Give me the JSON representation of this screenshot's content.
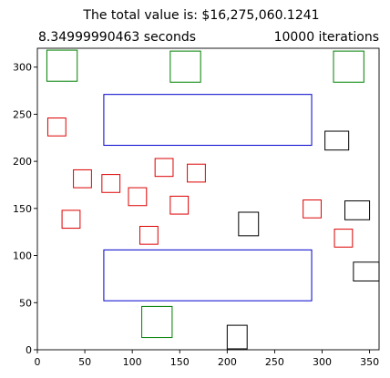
{
  "chart_data": {
    "type": "scatter",
    "title": "The total value is: $16,275,060.1241",
    "subtitle_left": "8.34999990463 seconds",
    "subtitle_right": "10000 iterations",
    "xlabel": "",
    "ylabel": "",
    "xlim": [
      0,
      360
    ],
    "ylim": [
      0,
      320
    ],
    "x_ticks": [
      0,
      50,
      100,
      150,
      200,
      250,
      300,
      350
    ],
    "y_ticks": [
      0,
      50,
      100,
      150,
      200,
      250,
      300
    ],
    "grid": false,
    "colors": {
      "green": "#008000",
      "blue": "#0000cc",
      "red": "#dd0000",
      "black": "#000000"
    },
    "rectangles": [
      {
        "x0": 10,
        "y0": 285,
        "x1": 42,
        "y1": 318,
        "color": "green"
      },
      {
        "x0": 140,
        "y0": 284,
        "x1": 172,
        "y1": 317,
        "color": "green"
      },
      {
        "x0": 312,
        "y0": 284,
        "x1": 344,
        "y1": 317,
        "color": "green"
      },
      {
        "x0": 110,
        "y0": 13,
        "x1": 142,
        "y1": 46,
        "color": "green"
      },
      {
        "x0": 70,
        "y0": 217,
        "x1": 289,
        "y1": 271,
        "color": "blue"
      },
      {
        "x0": 70,
        "y0": 52,
        "x1": 289,
        "y1": 106,
        "color": "blue"
      },
      {
        "x0": 11,
        "y0": 227,
        "x1": 30,
        "y1": 246,
        "color": "red"
      },
      {
        "x0": 38,
        "y0": 172,
        "x1": 57,
        "y1": 191,
        "color": "red"
      },
      {
        "x0": 68,
        "y0": 167,
        "x1": 87,
        "y1": 186,
        "color": "red"
      },
      {
        "x0": 124,
        "y0": 184,
        "x1": 143,
        "y1": 203,
        "color": "red"
      },
      {
        "x0": 158,
        "y0": 178,
        "x1": 177,
        "y1": 197,
        "color": "red"
      },
      {
        "x0": 96,
        "y0": 153,
        "x1": 115,
        "y1": 172,
        "color": "red"
      },
      {
        "x0": 140,
        "y0": 144,
        "x1": 159,
        "y1": 163,
        "color": "red"
      },
      {
        "x0": 26,
        "y0": 129,
        "x1": 45,
        "y1": 148,
        "color": "red"
      },
      {
        "x0": 108,
        "y0": 112,
        "x1": 127,
        "y1": 131,
        "color": "red"
      },
      {
        "x0": 280,
        "y0": 140,
        "x1": 299,
        "y1": 159,
        "color": "red"
      },
      {
        "x0": 313,
        "y0": 109,
        "x1": 332,
        "y1": 128,
        "color": "red"
      },
      {
        "x0": 303,
        "y0": 212,
        "x1": 328,
        "y1": 232,
        "color": "black"
      },
      {
        "x0": 324,
        "y0": 138,
        "x1": 350,
        "y1": 158,
        "color": "black"
      },
      {
        "x0": 212,
        "y0": 121,
        "x1": 233,
        "y1": 146,
        "color": "black"
      },
      {
        "x0": 333,
        "y0": 73,
        "x1": 360,
        "y1": 93,
        "color": "black"
      },
      {
        "x0": 200,
        "y0": 1,
        "x1": 221,
        "y1": 26,
        "color": "black"
      }
    ]
  }
}
